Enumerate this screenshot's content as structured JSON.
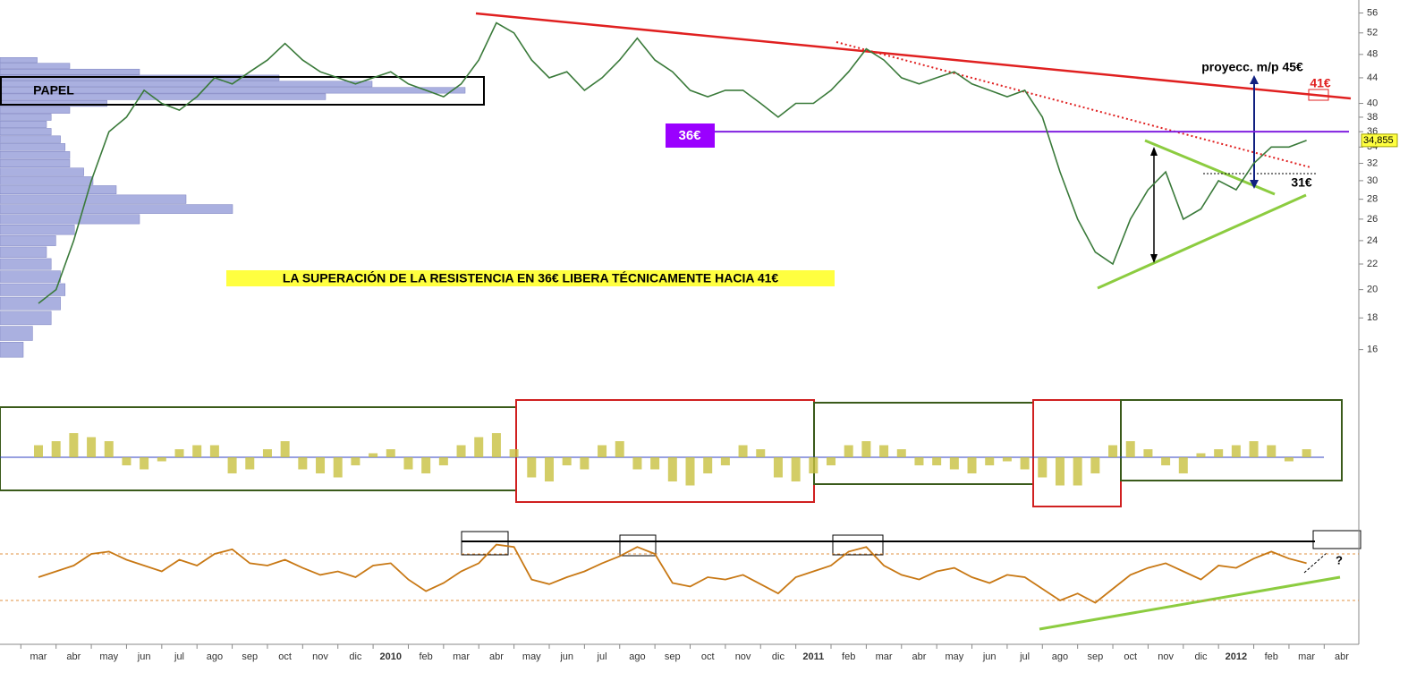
{
  "chart_data": {
    "type": "line",
    "headline": "LA SUPERACIÓN DE LA RESISTENCIA EN 36€ LIBERA TÉCNICAMENTE HACIA 41€",
    "labels": {
      "papel": "PAPEL",
      "resistance_label": "36€",
      "projection": "proyecc. m/p 45€",
      "target": "41€",
      "support": "31€",
      "last_value_label": "34,855",
      "question": "?"
    },
    "categories": [
      "mar",
      null,
      "abr",
      null,
      "may",
      null,
      "jun",
      null,
      "jul",
      null,
      "ago",
      null,
      "sep",
      null,
      "oct",
      null,
      "nov",
      null,
      "dic",
      null,
      "2010",
      null,
      "feb",
      null,
      "mar",
      null,
      "abr",
      null,
      "may",
      null,
      "jun",
      null,
      "jul",
      null,
      "ago",
      null,
      "sep",
      null,
      "oct",
      null,
      "nov",
      null,
      "dic",
      null,
      "2011",
      null,
      "feb",
      null,
      "mar",
      null,
      "abr",
      null,
      "may",
      null,
      "jun",
      null,
      "jul",
      null,
      "ago",
      null,
      "sep",
      null,
      "oct",
      null,
      "nov",
      null,
      "dic",
      null,
      "2012",
      null,
      "feb",
      null,
      "mar",
      null,
      "abr",
      null
    ],
    "values": [
      19,
      20,
      24,
      30,
      36,
      38,
      42,
      40,
      39,
      41,
      44,
      43,
      45,
      47,
      50,
      47,
      45,
      44,
      43,
      44,
      45,
      43,
      42,
      41,
      43,
      47,
      54,
      52,
      47,
      44,
      45,
      42,
      44,
      47,
      51,
      47,
      45,
      42,
      41,
      42,
      42,
      40,
      38,
      40,
      40,
      42,
      45,
      49,
      47,
      44,
      43,
      44,
      45,
      43,
      42,
      41,
      42,
      38,
      31,
      26,
      23,
      22,
      26,
      29,
      31,
      26,
      27,
      30,
      29,
      32,
      34,
      34,
      34.855,
      null,
      null,
      null
    ],
    "color": "#3a7a3a",
    "log_scale": true,
    "ylim": [
      15,
      58
    ],
    "yticks": [
      16,
      18,
      20,
      22,
      24,
      26,
      28,
      30,
      32,
      34,
      36,
      38,
      40,
      44,
      48,
      52,
      56
    ],
    "resistance": 36,
    "volume_profile": {
      "color": "#aab0e0",
      "levels": [
        16,
        17,
        18,
        19,
        20,
        21,
        22,
        23,
        24,
        25,
        26,
        27,
        28,
        29,
        30,
        31,
        32,
        33,
        34,
        35,
        36,
        37,
        38,
        39,
        40,
        41,
        42,
        43,
        44,
        45,
        46,
        47
      ],
      "values": [
        5,
        7,
        11,
        13,
        14,
        13,
        11,
        10,
        12,
        16,
        30,
        50,
        40,
        25,
        20,
        18,
        15,
        15,
        14,
        13,
        11,
        10,
        11,
        15,
        23,
        70,
        100,
        80,
        60,
        30,
        15,
        8
      ]
    },
    "oscillator": {
      "color": "#c8c040",
      "ylim": [
        -100,
        100
      ],
      "values": [
        30,
        40,
        60,
        50,
        40,
        -20,
        -30,
        -10,
        20,
        30,
        30,
        -40,
        -30,
        20,
        40,
        -30,
        -40,
        -50,
        -20,
        10,
        20,
        -30,
        -40,
        -20,
        30,
        50,
        60,
        20,
        -50,
        -60,
        -20,
        -30,
        30,
        40,
        -30,
        -30,
        -60,
        -70,
        -40,
        -20,
        30,
        20,
        -50,
        -60,
        -40,
        -20,
        30,
        40,
        30,
        20,
        -20,
        -20,
        -30,
        -40,
        -20,
        -10,
        -30,
        -50,
        -70,
        -70,
        -40,
        30,
        40,
        20,
        -20,
        -40,
        10,
        20,
        30,
        40,
        30,
        -10,
        20,
        null,
        null,
        null
      ]
    },
    "rsi": {
      "color": "#c87814",
      "ylim": [
        0,
        100
      ],
      "levels": [
        30,
        70
      ],
      "values": [
        50,
        55,
        60,
        70,
        72,
        65,
        60,
        55,
        65,
        60,
        70,
        74,
        62,
        60,
        65,
        58,
        52,
        55,
        50,
        60,
        62,
        48,
        38,
        45,
        55,
        62,
        78,
        76,
        48,
        44,
        50,
        55,
        62,
        68,
        76,
        70,
        45,
        42,
        50,
        48,
        52,
        44,
        36,
        50,
        55,
        60,
        72,
        76,
        60,
        52,
        48,
        55,
        58,
        50,
        45,
        52,
        50,
        40,
        30,
        36,
        28,
        40,
        52,
        58,
        62,
        55,
        48,
        60,
        58,
        66,
        72,
        66,
        62,
        null,
        null,
        null
      ]
    }
  }
}
